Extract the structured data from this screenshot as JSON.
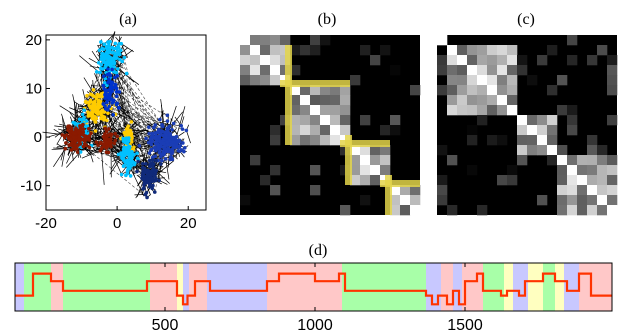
{
  "chart_data": [
    {
      "panel": "(a)",
      "type": "scatter",
      "xlim": [
        -20,
        25
      ],
      "ylim": [
        -15,
        21
      ],
      "xticks": [
        -20,
        0,
        20
      ],
      "yticks": [
        -10,
        0,
        10,
        20
      ],
      "clusters": [
        {
          "color": "#00c0ff",
          "center": [
            -2,
            16
          ],
          "spread": [
            2.5,
            3.2
          ],
          "n": 120
        },
        {
          "color": "#ffcc00",
          "center": [
            -6,
            6
          ],
          "spread": [
            3.0,
            3.0
          ],
          "n": 110
        },
        {
          "color": "#0033cc",
          "center": [
            -2,
            9
          ],
          "spread": [
            1.8,
            3.5
          ],
          "n": 60
        },
        {
          "color": "#00c0ff",
          "center": [
            -10,
            1
          ],
          "spread": [
            2.2,
            3.0
          ],
          "n": 80
        },
        {
          "color": "#8b1a00",
          "center": [
            -11,
            0
          ],
          "spread": [
            3.0,
            2.0
          ],
          "n": 120
        },
        {
          "color": "#8b1a00",
          "center": [
            -3,
            -1
          ],
          "spread": [
            2.0,
            2.0
          ],
          "n": 60
        },
        {
          "color": "#ffcc00",
          "center": [
            3,
            0
          ],
          "spread": [
            1.4,
            2.2
          ],
          "n": 40
        },
        {
          "color": "#00c0ff",
          "center": [
            3,
            -4
          ],
          "spread": [
            2.0,
            3.0
          ],
          "n": 80
        },
        {
          "color": "#1a3db5",
          "center": [
            14,
            -1
          ],
          "spread": [
            4.5,
            3.0
          ],
          "n": 180
        },
        {
          "color": "#102a7a",
          "center": [
            9,
            -8
          ],
          "spread": [
            2.0,
            3.0
          ],
          "n": 90
        }
      ]
    },
    {
      "panel": "(b)",
      "type": "heatmap",
      "rows": 18,
      "cols": 18,
      "blocks": [
        [
          0,
          5
        ],
        [
          5,
          11
        ],
        [
          11,
          15
        ],
        [
          15,
          18
        ]
      ],
      "highlight_color": "#e3d54a"
    },
    {
      "panel": "(c)",
      "type": "heatmap",
      "rows": 18,
      "cols": 18,
      "blocks": [
        [
          0,
          1
        ],
        [
          1,
          8
        ],
        [
          8,
          12
        ],
        [
          12,
          18
        ]
      ]
    },
    {
      "panel": "(d)",
      "type": "line",
      "xlim": [
        0,
        1990
      ],
      "xticks": [
        500,
        1000,
        1500
      ],
      "ylim": [
        0,
        5
      ],
      "line_color": "#ff3300",
      "background_segments": [
        {
          "x": [
            0,
            30
          ],
          "color": "#c8c8ff"
        },
        {
          "x": [
            30,
            120
          ],
          "color": "#a8ffa8"
        },
        {
          "x": [
            120,
            160
          ],
          "color": "#ffc8c8"
        },
        {
          "x": [
            160,
            450
          ],
          "color": "#a8ffa8"
        },
        {
          "x": [
            450,
            540
          ],
          "color": "#ffc8c8"
        },
        {
          "x": [
            540,
            560
          ],
          "color": "#ffffc0"
        },
        {
          "x": [
            560,
            580
          ],
          "color": "#c8c8ff"
        },
        {
          "x": [
            580,
            640
          ],
          "color": "#ffc8c8"
        },
        {
          "x": [
            640,
            840
          ],
          "color": "#c8c8ff"
        },
        {
          "x": [
            840,
            1090
          ],
          "color": "#ffc8c8"
        },
        {
          "x": [
            1090,
            1370
          ],
          "color": "#a8ffa8"
        },
        {
          "x": [
            1370,
            1420
          ],
          "color": "#c8c8ff"
        },
        {
          "x": [
            1420,
            1460
          ],
          "color": "#ffc8c8"
        },
        {
          "x": [
            1460,
            1490
          ],
          "color": "#c8c8ff"
        },
        {
          "x": [
            1490,
            1560
          ],
          "color": "#ffc8c8"
        },
        {
          "x": [
            1560,
            1630
          ],
          "color": "#a8ffa8"
        },
        {
          "x": [
            1630,
            1660
          ],
          "color": "#ffffc0"
        },
        {
          "x": [
            1660,
            1710
          ],
          "color": "#c8c8ff"
        },
        {
          "x": [
            1710,
            1760
          ],
          "color": "#ffffc0"
        },
        {
          "x": [
            1760,
            1800
          ],
          "color": "#a8ffa8"
        },
        {
          "x": [
            1800,
            1830
          ],
          "color": "#ffffc0"
        },
        {
          "x": [
            1830,
            1880
          ],
          "color": "#c8c8ff"
        },
        {
          "x": [
            1880,
            1990
          ],
          "color": "#ffc8c8"
        }
      ],
      "steps": [
        [
          0,
          1.6
        ],
        [
          60,
          1.6
        ],
        [
          60,
          3.9
        ],
        [
          120,
          3.9
        ],
        [
          120,
          3.1
        ],
        [
          160,
          3.1
        ],
        [
          160,
          2.1
        ],
        [
          440,
          2.1
        ],
        [
          440,
          3.1
        ],
        [
          540,
          3.1
        ],
        [
          540,
          1.6
        ],
        [
          560,
          1.6
        ],
        [
          560,
          0.7
        ],
        [
          575,
          0.7
        ],
        [
          575,
          1.6
        ],
        [
          600,
          1.6
        ],
        [
          600,
          3.1
        ],
        [
          650,
          3.1
        ],
        [
          650,
          2.1
        ],
        [
          840,
          2.1
        ],
        [
          840,
          3.1
        ],
        [
          880,
          3.1
        ],
        [
          880,
          3.9
        ],
        [
          1000,
          3.9
        ],
        [
          1000,
          3.1
        ],
        [
          1080,
          3.1
        ],
        [
          1080,
          3.9
        ],
        [
          1100,
          3.9
        ],
        [
          1100,
          2.1
        ],
        [
          1370,
          2.1
        ],
        [
          1370,
          1.6
        ],
        [
          1390,
          1.6
        ],
        [
          1390,
          0.7
        ],
        [
          1410,
          0.7
        ],
        [
          1410,
          1.6
        ],
        [
          1440,
          1.6
        ],
        [
          1440,
          0.7
        ],
        [
          1460,
          0.7
        ],
        [
          1460,
          2.1
        ],
        [
          1480,
          2.1
        ],
        [
          1480,
          0.7
        ],
        [
          1500,
          0.7
        ],
        [
          1500,
          3.1
        ],
        [
          1540,
          3.1
        ],
        [
          1540,
          3.9
        ],
        [
          1560,
          3.9
        ],
        [
          1560,
          2.1
        ],
        [
          1620,
          2.1
        ],
        [
          1620,
          1.6
        ],
        [
          1640,
          1.6
        ],
        [
          1640,
          2.1
        ],
        [
          1680,
          2.1
        ],
        [
          1680,
          1.6
        ],
        [
          1700,
          1.6
        ],
        [
          1700,
          3.1
        ],
        [
          1760,
          3.1
        ],
        [
          1760,
          3.9
        ],
        [
          1800,
          3.9
        ],
        [
          1800,
          3.1
        ],
        [
          1840,
          3.1
        ],
        [
          1840,
          2.1
        ],
        [
          1880,
          2.1
        ],
        [
          1880,
          3.9
        ],
        [
          1920,
          3.9
        ],
        [
          1920,
          1.6
        ],
        [
          1990,
          1.6
        ]
      ]
    }
  ],
  "labels": {
    "a": "(a)",
    "b": "(b)",
    "c": "(c)",
    "d": "(d)"
  }
}
